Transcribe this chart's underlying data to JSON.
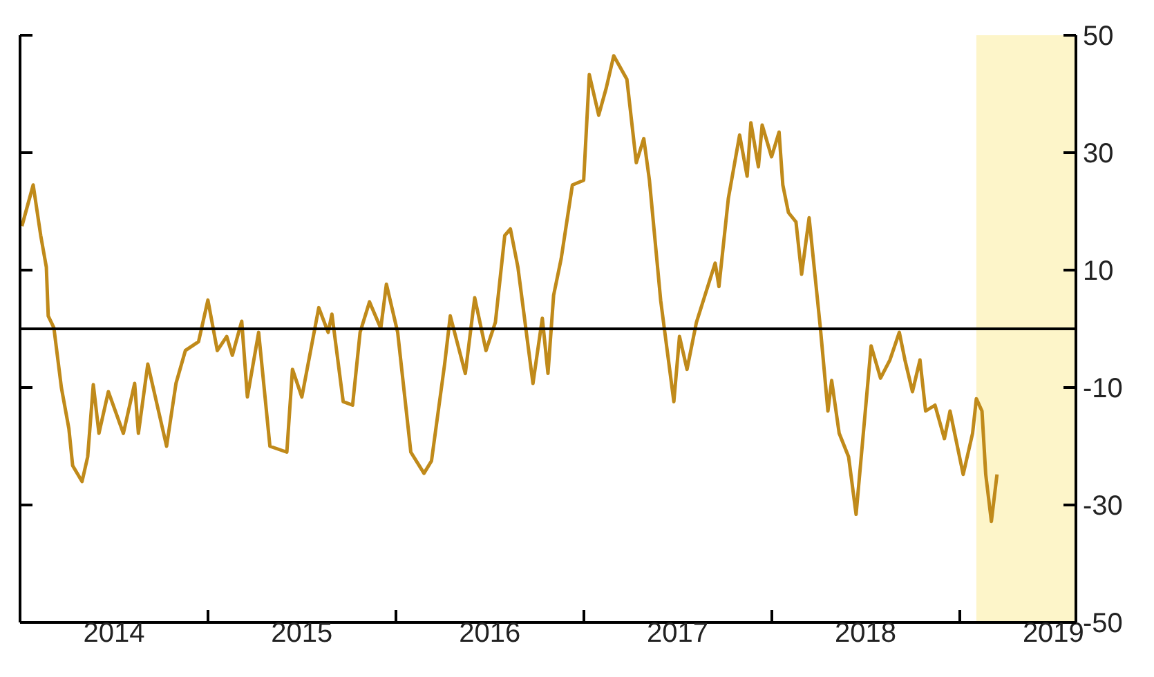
{
  "chart_data": {
    "type": "line",
    "x": [
      2014.01,
      2014.07,
      2014.11,
      2014.14,
      2014.15,
      2014.18,
      2014.22,
      2014.26,
      2014.28,
      2014.33,
      2014.36,
      2014.39,
      2014.42,
      2014.47,
      2014.55,
      2014.61,
      2014.63,
      2014.68,
      2014.78,
      2014.83,
      2014.88,
      2014.95,
      2015.0,
      2015.05,
      2015.1,
      2015.13,
      2015.18,
      2015.21,
      2015.27,
      2015.33,
      2015.42,
      2015.45,
      2015.5,
      2015.59,
      2015.64,
      2015.66,
      2015.72,
      2015.77,
      2015.81,
      2015.86,
      2015.92,
      2015.95,
      2016.01,
      2016.08,
      2016.15,
      2016.19,
      2016.26,
      2016.29,
      2016.37,
      2016.42,
      2016.48,
      2016.53,
      2016.58,
      2016.61,
      2016.65,
      2016.73,
      2016.78,
      2016.81,
      2016.84,
      2016.88,
      2016.94,
      2017.0,
      2017.03,
      2017.08,
      2017.12,
      2017.16,
      2017.23,
      2017.28,
      2017.32,
      2017.35,
      2017.41,
      2017.48,
      2017.51,
      2017.55,
      2017.6,
      2017.7,
      2017.72,
      2017.77,
      2017.83,
      2017.87,
      2017.89,
      2017.93,
      2017.95,
      2018.0,
      2018.04,
      2018.06,
      2018.09,
      2018.13,
      2018.16,
      2018.2,
      2018.26,
      2018.3,
      2018.32,
      2018.36,
      2018.41,
      2018.45,
      2018.53,
      2018.58,
      2018.63,
      2018.68,
      2018.71,
      2018.75,
      2018.79,
      2018.82,
      2018.87,
      2018.92,
      2018.95,
      2019.02,
      2019.07,
      2019.09,
      2019.12,
      2019.14,
      2019.17,
      2019.2
    ],
    "series": [
      {
        "color": "#c08a1a",
        "values": [
          17.5,
          24.5,
          15.9,
          10.5,
          2.2,
          0.2,
          -10,
          -17,
          -23.3,
          -26,
          -21.8,
          -9.5,
          -17.8,
          -10.7,
          -17.8,
          -9.3,
          -17.8,
          -6,
          -20,
          -9.3,
          -3.7,
          -2.2,
          4.9,
          -3.7,
          -1.3,
          -4.5,
          1.3,
          -11.6,
          -0.6,
          -20,
          -21,
          -6.9,
          -11.6,
          3.6,
          -0.6,
          2.5,
          -12.4,
          -13,
          -0.6,
          4.6,
          0.1,
          7.6,
          -0.6,
          -21,
          -24.6,
          -22.5,
          -6,
          2.2,
          -7.6,
          5.3,
          -3.7,
          1.1,
          15.9,
          17,
          10.5,
          -9.3,
          1.8,
          -7.6,
          5.7,
          11.9,
          24.5,
          25.3,
          43.3,
          36.4,
          41,
          46.5,
          42.5,
          28.3,
          32.4,
          25.3,
          4.8,
          -12.4,
          -1.3,
          -6.9,
          1.1,
          11.2,
          7.2,
          22.2,
          33,
          26,
          35.1,
          27.6,
          34.7,
          29.3,
          33.5,
          24.5,
          19.8,
          18.2,
          9.3,
          18.9,
          0.1,
          -14,
          -8.8,
          -17.8,
          -21.8,
          -31.6,
          -2.9,
          -8.4,
          -5.3,
          -0.6,
          -5.3,
          -10.7,
          -5.3,
          -14,
          -13,
          -18.7,
          -14,
          -24.8,
          -17.8,
          -11.9,
          -14,
          -24.8,
          -32.8,
          -24.8
        ]
      }
    ],
    "xlim": [
      2014,
      2019.62
    ],
    "xticks": [
      {
        "value": 2015,
        "label": null
      },
      {
        "value": 2016,
        "label": null
      },
      {
        "value": 2017,
        "label": null
      },
      {
        "value": 2018,
        "label": null
      },
      {
        "value": 2019,
        "label": null
      },
      {
        "value": 2014.5,
        "label": "2014"
      },
      {
        "value": 2015.5,
        "label": "2015"
      },
      {
        "value": 2016.5,
        "label": "2016"
      },
      {
        "value": 2017.5,
        "label": "2017"
      },
      {
        "value": 2018.5,
        "label": "2018"
      },
      {
        "value": 2019.5,
        "label": "2019"
      }
    ],
    "ylim": [
      -50,
      50
    ],
    "yticks": [
      50,
      30,
      10,
      -10,
      -30,
      -50
    ],
    "ref_lines": [
      {
        "axis": "y",
        "value": 0,
        "color": "#000000"
      }
    ],
    "bands": [
      {
        "axis": "x",
        "from": 2019.09,
        "to": 2019.62,
        "color": "#fdf5c9"
      }
    ],
    "grid": false
  }
}
